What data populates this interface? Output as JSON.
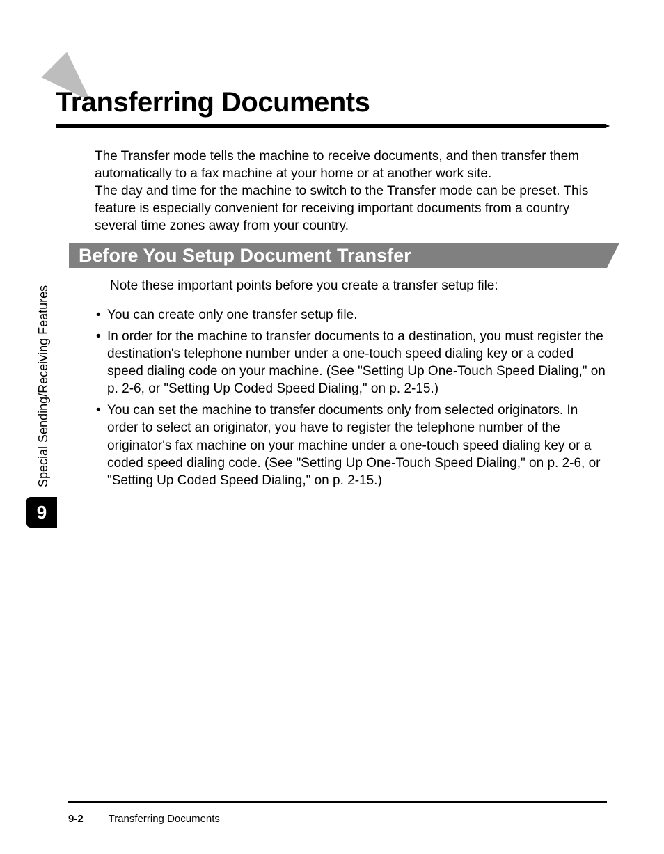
{
  "heading": "Transferring Documents",
  "intro": "The Transfer mode tells the machine to receive documents, and then transfer them automatically to a fax machine at your home or at another work site.\nThe day and time for the machine to switch to the Transfer mode can be preset. This feature is especially convenient for receiving important documents from a country several time zones away from your country.",
  "section_title": "Before You Setup Document Transfer",
  "section_intro": "Note these important points before you create a transfer setup file:",
  "bullets": [
    "You can create only one transfer setup file.",
    "In order for the machine to transfer documents to a destination, you must register the destination's telephone number under a one-touch speed dialing key or a coded speed dialing code on your machine. (See \"Setting Up One-Touch Speed Dialing,\" on p. 2-6, or \"Setting Up Coded Speed Dialing,\" on p. 2-15.)",
    "You can set the machine to transfer documents only from selected originators. In order to select an originator, you have to register the telephone number of the originator's fax machine on your machine under a one-touch speed dialing key or a coded speed dialing code. (See \"Setting Up One-Touch Speed Dialing,\" on p. 2-6, or \"Setting Up Coded Speed Dialing,\" on p. 2-15.)"
  ],
  "side_label": "Special Sending/Receiving Features",
  "chapter_number": "9",
  "footer_page": "9-2",
  "footer_title": "Transferring Documents",
  "colors": {
    "arrow": "#bdbdbd",
    "section_bar": "#808080",
    "tab": "#000000",
    "rule": "#000000",
    "text": "#000000",
    "bg": "#ffffff"
  },
  "typography": {
    "heading_size": 40,
    "section_size": 27,
    "body_size": 19,
    "footer_size": 15,
    "side_size": 18
  }
}
